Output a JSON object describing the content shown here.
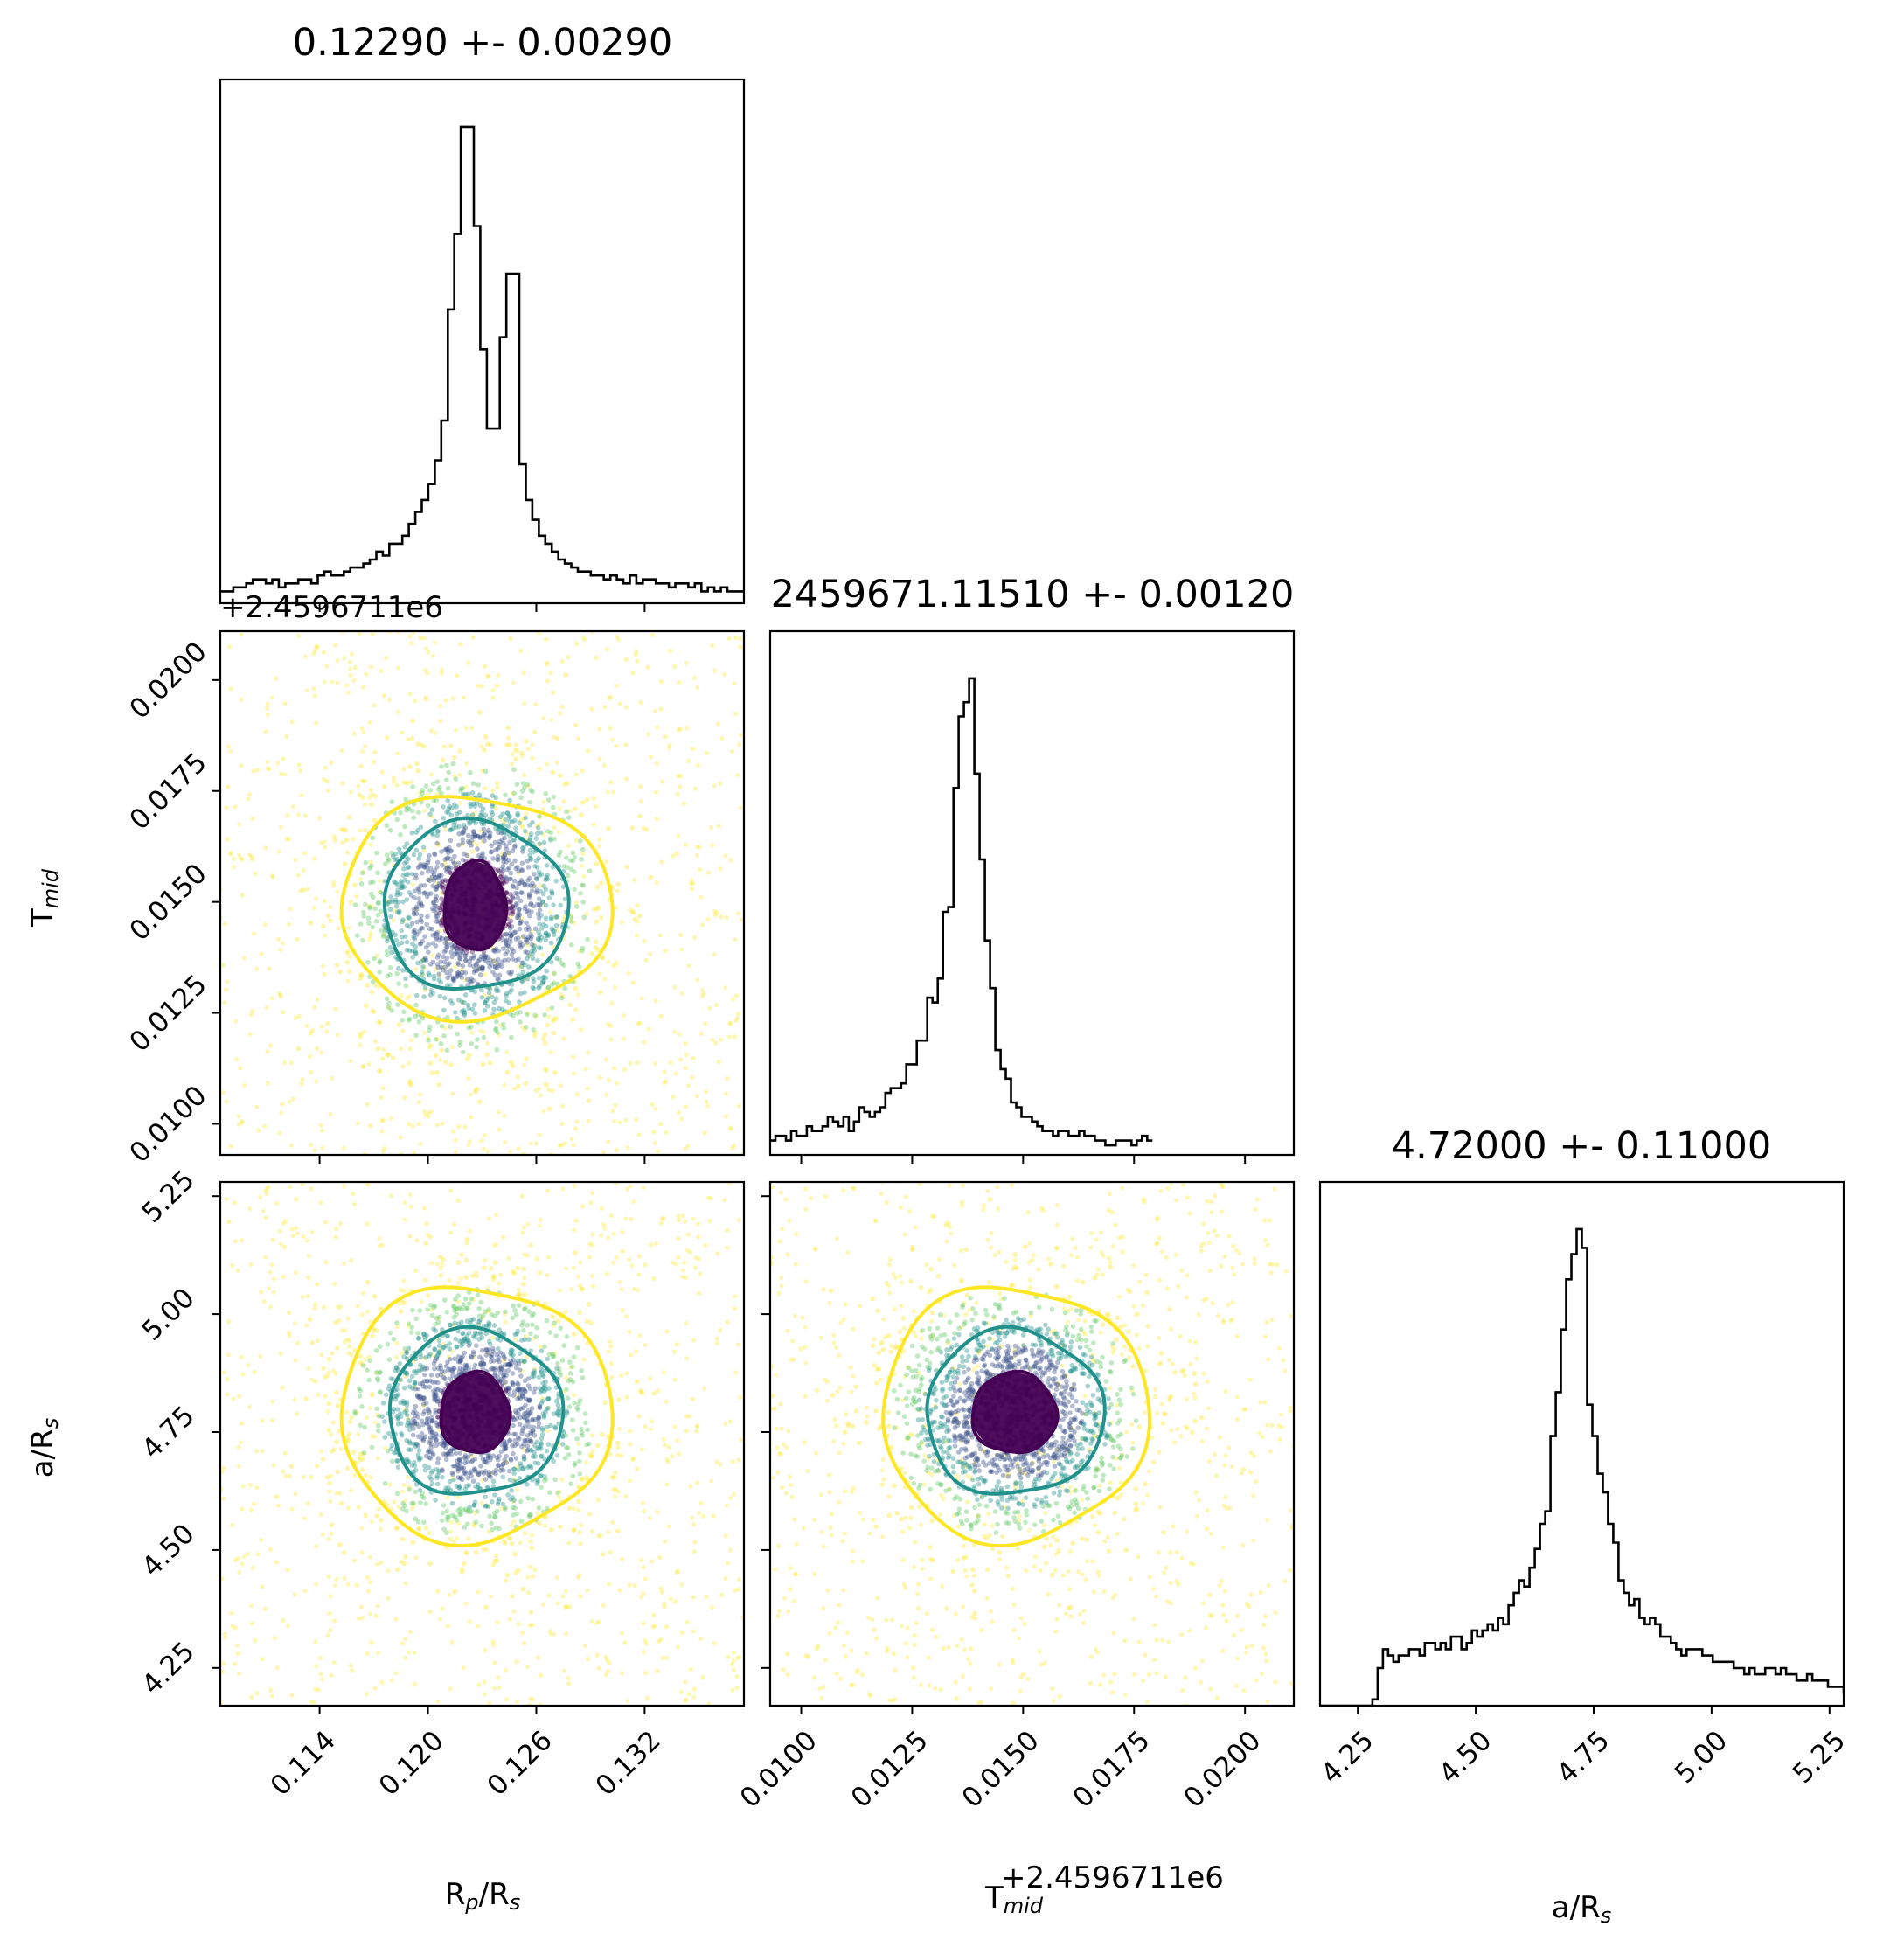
{
  "figure": {
    "type": "corner_plot"
  },
  "chart_data": [
    {
      "type": "histogram",
      "panel": "diag-0",
      "title": "0.12290 +- 0.00290",
      "xlim": [
        0.1085,
        0.1375
      ],
      "x_ticks": [
        0.114,
        0.12,
        0.126,
        0.132
      ],
      "x_tick_labels": [
        "0.114",
        "0.120",
        "0.126",
        "0.132"
      ],
      "bin_start": 0.1085,
      "bin_width": 0.00036,
      "counts": [
        3,
        3,
        4,
        4,
        5,
        6,
        6,
        5,
        6,
        4,
        5,
        5,
        6,
        6,
        5,
        7,
        8,
        7,
        7,
        8,
        9,
        9,
        10,
        11,
        13,
        12,
        15,
        15,
        17,
        20,
        23,
        26,
        30,
        36,
        46,
        74,
        93,
        120,
        120,
        95,
        64,
        44,
        44,
        67,
        83,
        83,
        35,
        26,
        21,
        17,
        15,
        13,
        11,
        10,
        9,
        8,
        8,
        7,
        7,
        6,
        7,
        6,
        5,
        7,
        5,
        6,
        6,
        5,
        5,
        4,
        5,
        5,
        4,
        5,
        3,
        4,
        3,
        4,
        3,
        3,
        3
      ]
    },
    {
      "type": "histogram",
      "panel": "diag-1",
      "title": "2459671.11510 +- 0.00120",
      "xlim": [
        0.0093,
        0.0211
      ],
      "x_ticks": [
        0.01,
        0.0125,
        0.015,
        0.0175,
        0.02
      ],
      "x_tick_labels": [
        "0.0100",
        "0.0125",
        "0.0150",
        "0.0175",
        "0.0200"
      ],
      "offset_label": "+2.4596711e6",
      "xlabel": "T_mid",
      "bin_start": 0.0093,
      "bin_width": 0.000118,
      "counts": [
        3,
        4,
        4,
        3,
        5,
        4,
        4,
        6,
        5,
        5,
        6,
        8,
        7,
        6,
        8,
        5,
        7,
        10,
        9,
        8,
        9,
        10,
        13,
        14,
        14,
        15,
        19,
        19,
        24,
        24,
        33,
        32,
        37,
        51,
        52,
        77,
        92,
        95,
        100,
        80,
        62,
        45,
        35,
        22,
        18,
        16,
        11,
        10,
        8,
        8,
        7,
        6,
        5,
        5,
        4,
        5,
        5,
        4,
        4,
        5,
        4,
        4,
        3,
        3,
        2,
        2,
        3,
        3,
        3,
        2,
        3,
        4,
        3
      ]
    },
    {
      "type": "histogram",
      "panel": "diag-2",
      "title": "4.72000 +- 0.11000",
      "xlim": [
        4.17,
        5.28
      ],
      "x_ticks": [
        4.25,
        4.5,
        4.75,
        5.0,
        5.25
      ],
      "x_tick_labels": [
        "4.25",
        "4.50",
        "4.75",
        "5.00",
        "5.25"
      ],
      "bin_start": 4.17,
      "bin_width": 0.0111,
      "counts": [
        0,
        0,
        0,
        0,
        0,
        0,
        0,
        0,
        0,
        0,
        1,
        6,
        9,
        8,
        7,
        8,
        8,
        9,
        9,
        8,
        10,
        10,
        9,
        10,
        9,
        11,
        11,
        9,
        10,
        12,
        11,
        12,
        13,
        12,
        14,
        13,
        16,
        18,
        20,
        19,
        22,
        25,
        29,
        31,
        43,
        50,
        60,
        68,
        72,
        76,
        73,
        48,
        43,
        37,
        34,
        29,
        26,
        20,
        18,
        16,
        17,
        14,
        13,
        14,
        13,
        11,
        11,
        10,
        9,
        8,
        9,
        9,
        9,
        8,
        8,
        7,
        7,
        7,
        7,
        6,
        6,
        5,
        6,
        5,
        5,
        6,
        6,
        5,
        6,
        5,
        5,
        4,
        4,
        5,
        4,
        4,
        4,
        3,
        3,
        3,
        2
      ]
    },
    {
      "type": "scatter",
      "panel": "pair-1-0",
      "xlim": [
        0.1085,
        0.1375
      ],
      "ylim": [
        0.0093,
        0.0211
      ],
      "y_ticks": [
        0.01,
        0.0125,
        0.015,
        0.0175,
        0.02
      ],
      "y_tick_labels": [
        "0.0100",
        "0.0125",
        "0.0150",
        "0.0175",
        "0.0200"
      ],
      "ylabel": "T_mid",
      "offset_label": "+2.4596711e6",
      "center": [
        0.1226,
        0.0149
      ],
      "spread": [
        0.0038,
        0.0019
      ],
      "contours": [
        {
          "level": 1,
          "color": "#440154",
          "rx": 0.0017,
          "ry": 0.001
        },
        {
          "level": 2,
          "color": "#21918c",
          "rx": 0.0051,
          "ry": 0.0019
        },
        {
          "level": 3,
          "color": "#fde725",
          "rx": 0.0075,
          "ry": 0.0025
        }
      ],
      "colors": [
        "#440154",
        "#3b528b",
        "#21918c",
        "#5ec962",
        "#fde725"
      ]
    },
    {
      "type": "scatter",
      "panel": "pair-2-0",
      "xlim": [
        0.1085,
        0.1375
      ],
      "ylim": [
        4.17,
        5.28
      ],
      "y_ticks": [
        4.25,
        4.5,
        4.75,
        5.0,
        5.25
      ],
      "y_tick_labels": [
        "4.25",
        "4.50",
        "4.75",
        "5.00",
        "5.25"
      ],
      "x_ticks": [
        0.114,
        0.12,
        0.126,
        0.132
      ],
      "x_tick_labels": [
        "0.114",
        "0.120",
        "0.126",
        "0.132"
      ],
      "xlabel": "R_p/R_s",
      "ylabel": "a/R_s",
      "center": [
        0.1226,
        4.79
      ],
      "spread": [
        0.0038,
        0.15
      ],
      "contours": [
        {
          "level": 1,
          "color": "#440154",
          "rx": 0.0019,
          "ry": 0.085
        },
        {
          "level": 2,
          "color": "#21918c",
          "rx": 0.0048,
          "ry": 0.175
        },
        {
          "level": 3,
          "color": "#fde725",
          "rx": 0.0075,
          "ry": 0.27
        }
      ],
      "colors": [
        "#440154",
        "#3b528b",
        "#21918c",
        "#5ec962",
        "#fde725"
      ]
    },
    {
      "type": "scatter",
      "panel": "pair-2-1",
      "xlim": [
        0.0093,
        0.0211
      ],
      "ylim": [
        4.17,
        5.28
      ],
      "x_ticks": [
        0.01,
        0.0125,
        0.015,
        0.0175,
        0.02
      ],
      "x_tick_labels": [
        "0.0100",
        "0.0125",
        "0.0150",
        "0.0175",
        "0.0200"
      ],
      "xlabel": "T_mid",
      "offset_label": "+2.4596711e6",
      "center": [
        0.0148,
        4.79
      ],
      "spread": [
        0.0016,
        0.15
      ],
      "contours": [
        {
          "level": 1,
          "color": "#440154",
          "rx": 0.00095,
          "ry": 0.085
        },
        {
          "level": 2,
          "color": "#21918c",
          "rx": 0.002,
          "ry": 0.175
        },
        {
          "level": 3,
          "color": "#fde725",
          "rx": 0.003,
          "ry": 0.27
        }
      ],
      "colors": [
        "#440154",
        "#3b528b",
        "#21918c",
        "#5ec962",
        "#fde725"
      ]
    }
  ],
  "labels": {
    "title_0": "0.12290 +- 0.00290",
    "title_1": "2459671.11510 +- 0.00120",
    "title_2": "4.72000 +- 0.11000",
    "offset_top": "+2.4596711e6",
    "offset_bottom": "+2.4596711e6",
    "ylabel_tmid_main": "T",
    "ylabel_tmid_sub": "mid",
    "ylabel_ars_main": "a/R",
    "ylabel_ars_sub": "s",
    "xlabel_rprs_a": "R",
    "xlabel_rprs_b": "p",
    "xlabel_rprs_c": "/R",
    "xlabel_rprs_d": "s",
    "xlabel_tmid_main": "T",
    "xlabel_tmid_sub": "mid",
    "xlabel_ars_main": "a/R",
    "xlabel_ars_sub": "s"
  }
}
